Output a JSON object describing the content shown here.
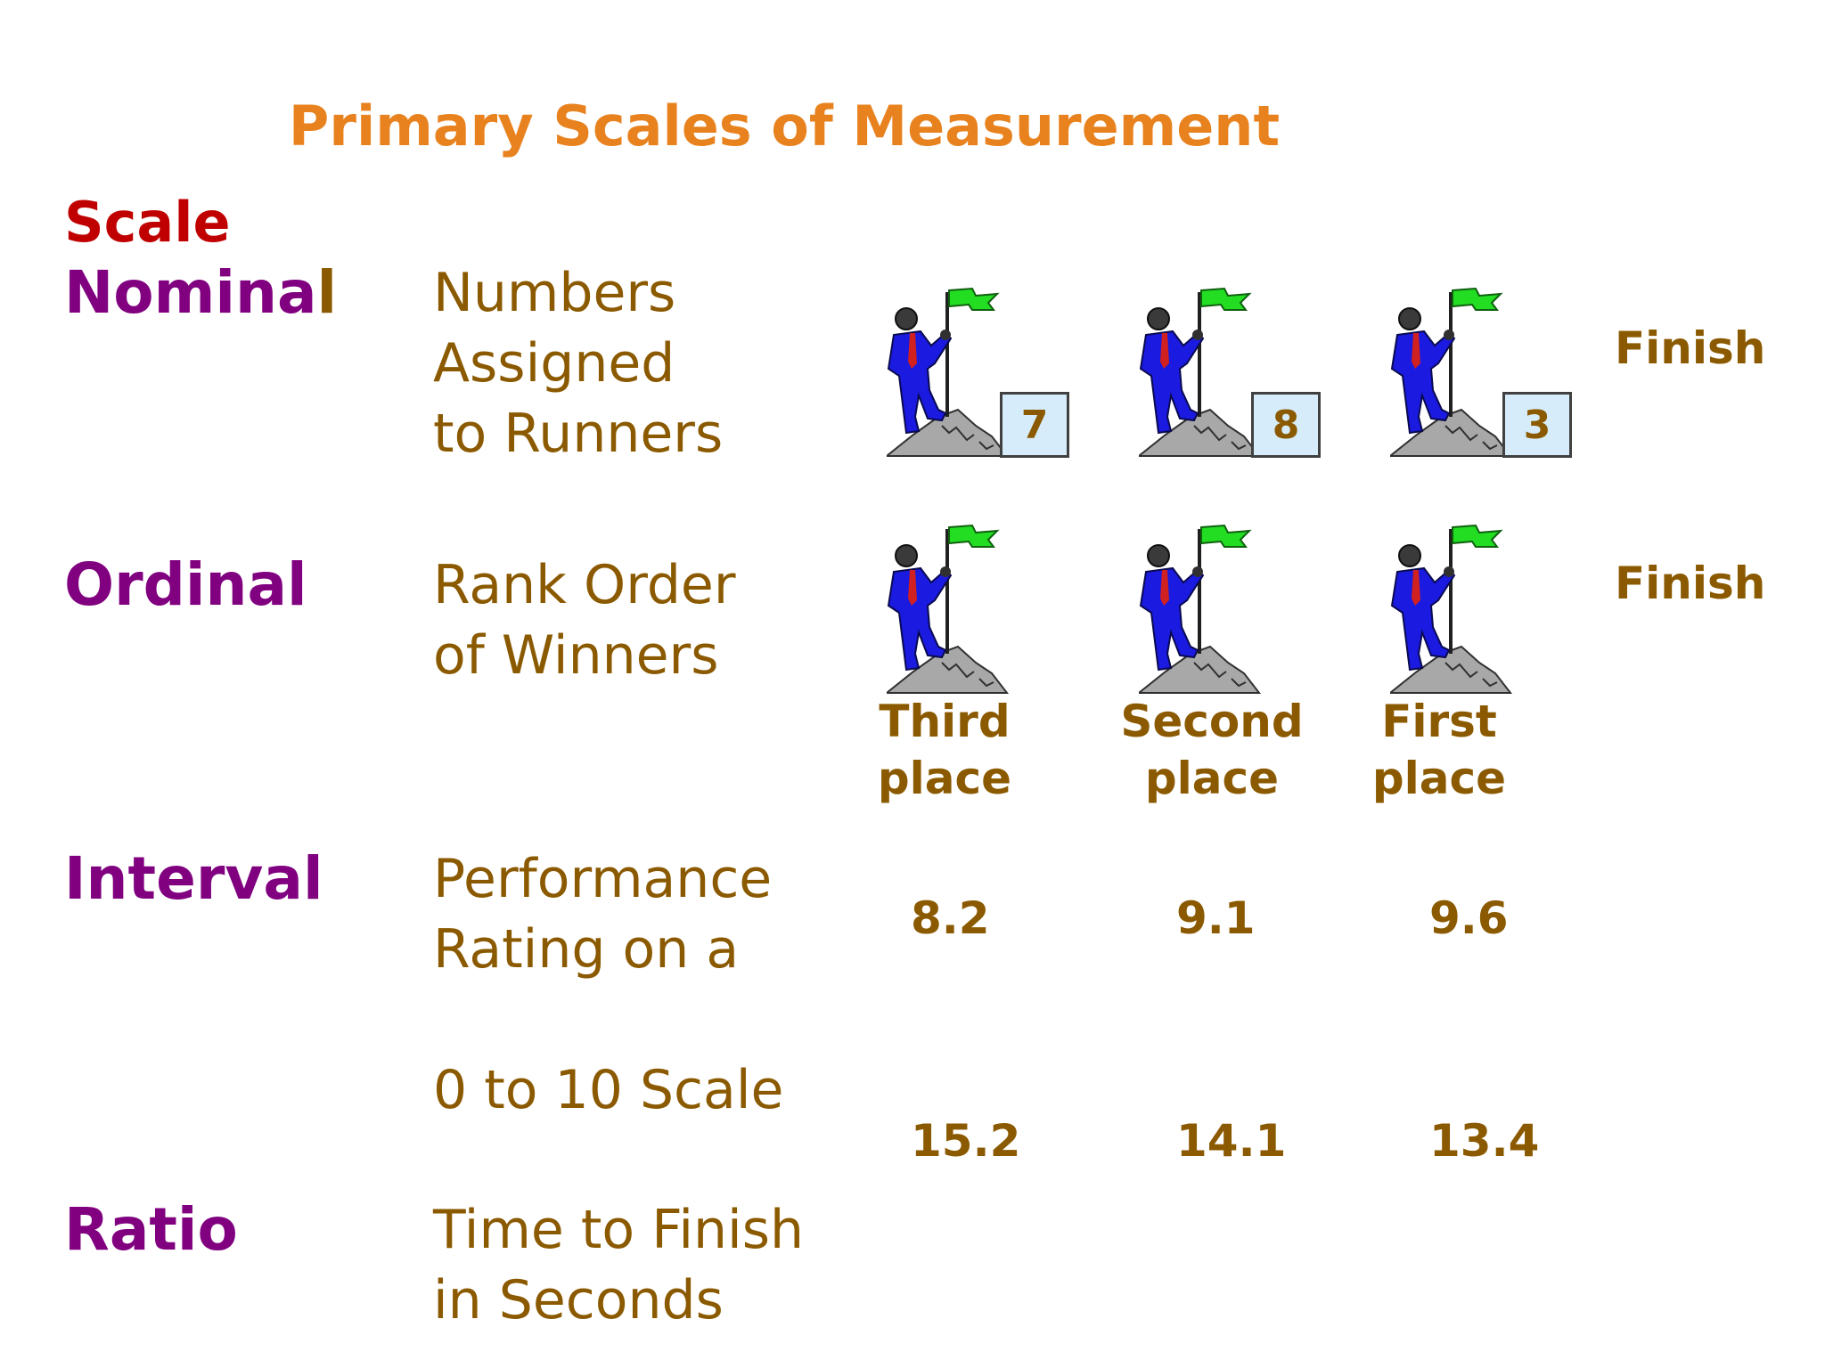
{
  "title": "Primary Scales of Measurement",
  "scale_heading": "Scale",
  "rows": {
    "nominal": {
      "name_main": "Nomina",
      "name_tail": "l",
      "desc": [
        "Numbers",
        "Assigned",
        "to Runners"
      ],
      "bibs": [
        "7",
        "8",
        "3"
      ],
      "finish": "Finish"
    },
    "ordinal": {
      "name": "Ordinal",
      "desc": [
        "Rank Order",
        "of Winners"
      ],
      "places": [
        [
          "Third",
          "place"
        ],
        [
          "Second",
          "place"
        ],
        [
          "First",
          "place"
        ]
      ],
      "finish": "Finish"
    },
    "interval": {
      "name": "Interval",
      "desc": [
        "Performance",
        "Rating on a",
        "",
        "0 to 10 Scale"
      ],
      "values": [
        "8.2",
        "9.1",
        "9.6"
      ]
    },
    "ratio": {
      "name": "Ratio",
      "desc": [
        "Time to Finish",
        "in Seconds"
      ],
      "values": [
        "15.2",
        "14.1",
        "13.4"
      ]
    }
  },
  "icons": {
    "runner": "runner-with-flag-on-mountain-icon",
    "flag_color": "#22DD22",
    "suit_color": "#1A1AE0",
    "rock_color": "#A0A0A0"
  }
}
